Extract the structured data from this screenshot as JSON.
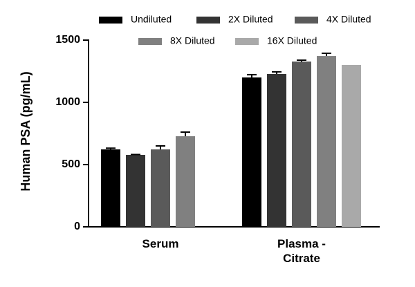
{
  "chart_data": {
    "type": "bar",
    "y_label": "Human PSA (pg/mL)",
    "categories": [
      "Serum",
      "Plasma - Citrate"
    ],
    "series": [
      {
        "name": "Undiluted",
        "color": "#000000",
        "values": [
          622,
          1200
        ],
        "errors": [
          10,
          22
        ]
      },
      {
        "name": "2X Diluted",
        "color": "#333333",
        "values": [
          578,
          1228
        ],
        "errors": [
          3,
          17
        ]
      },
      {
        "name": "4X Diluted",
        "color": "#5a5a5a",
        "values": [
          622,
          1328
        ],
        "errors": [
          28,
          11
        ]
      },
      {
        "name": "8X Diluted",
        "color": "#808080",
        "values": [
          728,
          1372
        ],
        "errors": [
          33,
          22
        ]
      },
      {
        "name": "16X Diluted",
        "color": "#a9a9a9",
        "values": [
          null,
          1300
        ],
        "errors": [
          null,
          null
        ]
      }
    ],
    "ylim": [
      0,
      1500
    ],
    "yticks": [
      0,
      500,
      1000,
      1500
    ]
  }
}
